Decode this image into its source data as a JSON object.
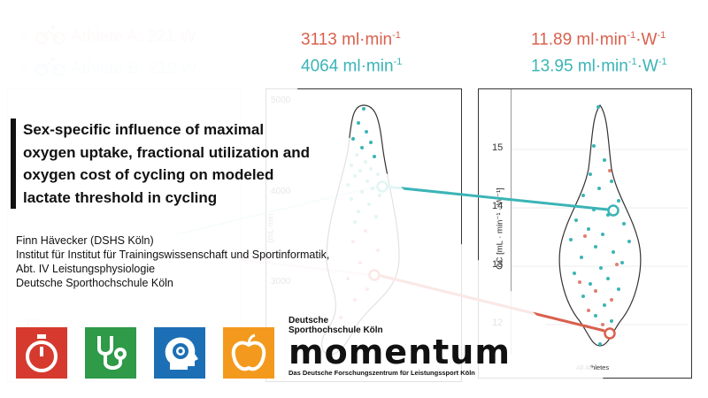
{
  "header": {
    "athlete_a": "Athlete A: 221 W",
    "athlete_b": "Athlete B: 219 W",
    "vo2_a": "3113 ml·min",
    "vo2_b": "4064 ml·min",
    "vo2_sup": "-1",
    "oc_a": "11.89 ml·min",
    "oc_b": "13.95 ml·min",
    "oc_sup1": "-1",
    "oc_mid": "·W",
    "oc_sup2": "-1"
  },
  "title": {
    "line1": "Sex-specific influence of maximal",
    "line2": "oxygen uptake, fractional utilization and",
    "line3": "oxygen cost of cycling on modeled",
    "line4": "lactate threshold in cycling"
  },
  "authors": {
    "line1": "Finn Hävecker (DSHS Köln)",
    "line2": "Institut für Institut für Trainingswissenschaft und Sportinformatik,",
    "line3": "Abt. IV Leistungsphysiologie",
    "line4": "Deutsche Sporthochschule Köln"
  },
  "left_chart": {
    "ytick": "150"
  },
  "mid_chart": {
    "yticks": [
      "5000",
      "4000",
      "3000"
    ],
    "ylabel_fragment": "(mL·min"
  },
  "right_chart": {
    "ylabel": "OC [mL · min⁻¹ · W⁻¹]",
    "yticks": [
      "15",
      "14",
      "13",
      "12"
    ],
    "xlabel": "All Athletes"
  },
  "logo": {
    "line1": "Deutsche",
    "line2": "Sporthochschule Köln",
    "word": "momentum",
    "line3": "Das Deutsche Forschungszentrum für Leistungssport Köln"
  },
  "icons": [
    "stopwatch-icon",
    "stethoscope-icon",
    "head-gear-icon",
    "apple-icon"
  ],
  "colors": {
    "red": "#d9604d",
    "teal": "#3bb4b6",
    "tile_red": "#d63a2f",
    "tile_green": "#2f9a48",
    "tile_blue": "#1d6fb5",
    "tile_orange": "#f39a1e"
  }
}
